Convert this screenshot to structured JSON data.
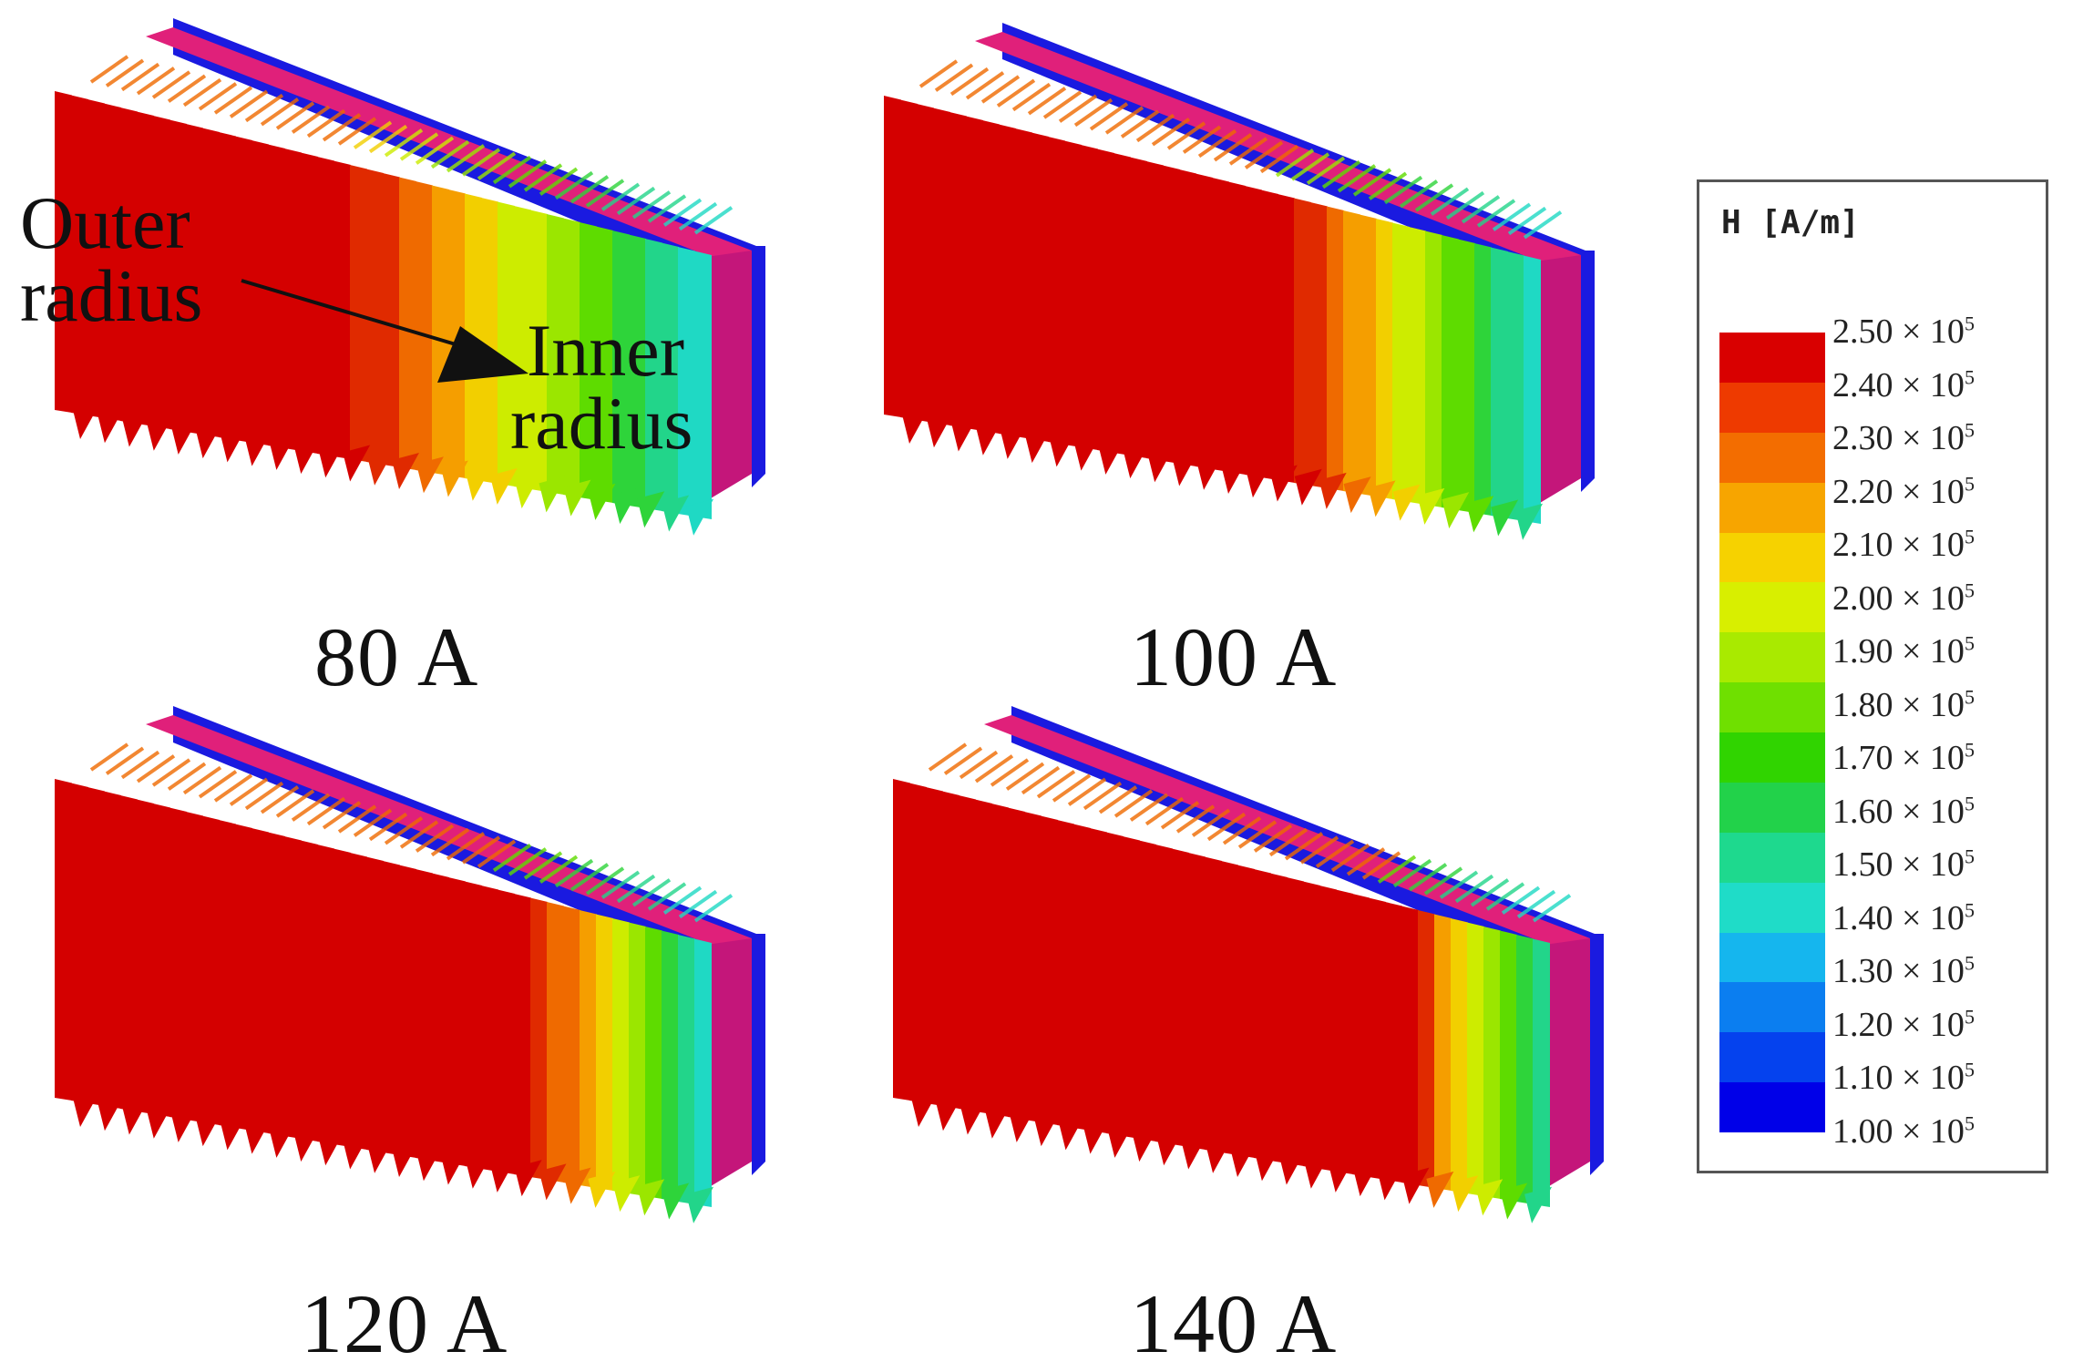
{
  "panels": [
    {
      "current": "80 A",
      "red_fraction": 0.45
    },
    {
      "current": "100 A",
      "red_fraction": 0.62
    },
    {
      "current": "120 A",
      "red_fraction": 0.72
    },
    {
      "current": "140 A",
      "red_fraction": 0.78
    }
  ],
  "annotations": {
    "outer_radius_line1": "Outer",
    "outer_radius_line2": "radius",
    "inner_radius_line1": "Inner",
    "inner_radius_line2": "radius"
  },
  "legend": {
    "title": "H [A/m]",
    "multiplier": "× 10",
    "exponent": "5",
    "values": [
      "2.50",
      "2.40",
      "2.30",
      "2.20",
      "2.10",
      "2.00",
      "1.90",
      "1.80",
      "1.70",
      "1.60",
      "1.50",
      "1.40",
      "1.30",
      "1.20",
      "1.10",
      "1.00"
    ],
    "colors": [
      "#d90000",
      "#ee3a00",
      "#f36d00",
      "#f7a500",
      "#f6d200",
      "#d8ef00",
      "#a9ea00",
      "#6fe000",
      "#30d400",
      "#22d24a",
      "#1ed98e",
      "#1fdcc8",
      "#15b6ee",
      "#0b7ef0",
      "#0542ee",
      "#0000e8"
    ]
  },
  "palette": {
    "face_red": "#d40000",
    "back_plate": "#1a1ae0",
    "side_magenta": "#c4167a",
    "top_pink": "#e0207a"
  }
}
